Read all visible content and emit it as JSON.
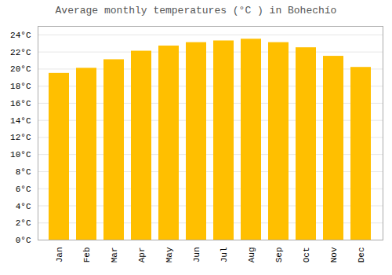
{
  "chart_data": {
    "type": "bar",
    "title": "Average monthly temperatures (°C ) in Bohechío",
    "categories": [
      "Jan",
      "Feb",
      "Mar",
      "Apr",
      "May",
      "Jun",
      "Jul",
      "Aug",
      "Sep",
      "Oct",
      "Nov",
      "Dec"
    ],
    "values": [
      19.5,
      20.1,
      21.1,
      22.1,
      22.7,
      23.1,
      23.3,
      23.5,
      23.1,
      22.5,
      21.5,
      20.2
    ],
    "color": "#FFBF00",
    "ylim": [
      0,
      25
    ],
    "yticks": [
      {
        "value": 0,
        "label": "0°C"
      },
      {
        "value": 2,
        "label": "2°C"
      },
      {
        "value": 4,
        "label": "4°C"
      },
      {
        "value": 6,
        "label": "6°C"
      },
      {
        "value": 8,
        "label": "8°C"
      },
      {
        "value": 10,
        "label": "10°C"
      },
      {
        "value": 12,
        "label": "12°C"
      },
      {
        "value": 14,
        "label": "14°C"
      },
      {
        "value": 16,
        "label": "16°C"
      },
      {
        "value": 18,
        "label": "18°C"
      },
      {
        "value": 20,
        "label": "20°C"
      },
      {
        "value": 22,
        "label": "22°C"
      },
      {
        "value": 24,
        "label": "24°C"
      }
    ],
    "grid": true
  }
}
